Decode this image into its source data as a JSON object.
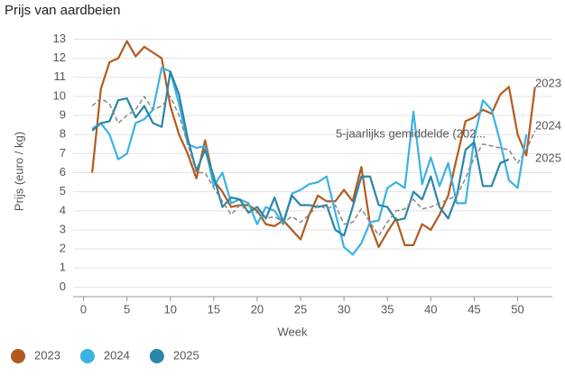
{
  "chart_data": {
    "type": "line",
    "title": "Prijs van aardbeien",
    "x_label": "Week",
    "y_label": "Prijs (euro / kg)",
    "x": [
      1,
      2,
      3,
      4,
      5,
      6,
      7,
      8,
      9,
      10,
      11,
      12,
      13,
      14,
      15,
      16,
      17,
      18,
      19,
      20,
      21,
      22,
      23,
      24,
      25,
      26,
      27,
      28,
      29,
      30,
      31,
      32,
      33,
      34,
      35,
      36,
      37,
      38,
      39,
      40,
      41,
      42,
      43,
      44,
      45,
      46,
      47,
      48,
      49,
      50,
      51,
      52
    ],
    "xlim": [
      -1.2,
      54
    ],
    "xticks": [
      0,
      5,
      10,
      15,
      20,
      25,
      30,
      35,
      40,
      45,
      50
    ],
    "ylim": [
      -0.5,
      13.4
    ],
    "yticks": [
      0,
      1,
      2,
      3,
      4,
      5,
      6,
      7,
      8,
      9,
      10,
      11,
      12,
      13
    ],
    "grid": true,
    "legend": "bottom",
    "series": [
      {
        "name": "2023",
        "color": "#b35a1f",
        "values": [
          6.0,
          10.4,
          11.8,
          12.0,
          12.9,
          12.1,
          12.6,
          12.3,
          12.0,
          9.5,
          8.0,
          7.0,
          5.7,
          7.7,
          5.6,
          5.0,
          4.2,
          4.3,
          4.3,
          4.0,
          3.3,
          3.2,
          3.5,
          3.0,
          2.5,
          3.8,
          4.8,
          4.5,
          4.5,
          5.1,
          4.5,
          6.3,
          3.3,
          2.1,
          2.9,
          3.6,
          2.2,
          2.2,
          3.3,
          3.0,
          3.8,
          4.8,
          6.8,
          8.7,
          8.9,
          9.3,
          9.1,
          10.1,
          10.5,
          8.0,
          6.9,
          10.5
        ]
      },
      {
        "name": "2024",
        "color": "#3ab2e6",
        "values": [
          8.3,
          8.6,
          8.0,
          6.7,
          7.0,
          8.6,
          8.8,
          9.3,
          11.5,
          11.3,
          9.6,
          7.5,
          7.3,
          7.4,
          5.3,
          6.0,
          4.4,
          4.6,
          4.4,
          3.3,
          4.2,
          4.0,
          3.3,
          4.9,
          5.1,
          5.4,
          5.5,
          5.8,
          3.9,
          2.1,
          1.7,
          2.3,
          3.4,
          3.5,
          5.2,
          5.5,
          5.2,
          9.2,
          5.4,
          6.8,
          5.3,
          6.5,
          4.4,
          4.4,
          7.8,
          9.8,
          9.3,
          7.6,
          5.6,
          5.2,
          8.0,
          null
        ]
      },
      {
        "name": "2025",
        "color": "#2a86a8",
        "values": [
          8.2,
          8.6,
          8.7,
          9.8,
          9.9,
          8.9,
          9.5,
          8.6,
          8.4,
          11.3,
          10.1,
          7.8,
          6.1,
          7.2,
          5.8,
          4.2,
          4.7,
          4.6,
          3.9,
          4.2,
          3.6,
          4.7,
          3.4,
          4.8,
          4.3,
          4.3,
          4.2,
          4.3,
          3.0,
          2.7,
          4.2,
          5.8,
          5.8,
          4.3,
          4.2,
          3.5,
          3.6,
          5.0,
          4.6,
          5.8,
          4.2,
          3.6,
          4.8,
          7.2,
          7.6,
          5.3,
          5.3,
          6.5,
          6.7,
          null,
          null,
          null
        ]
      },
      {
        "label": "5-jaarlijks gemiddelde (202...",
        "color": "#888888",
        "dashed": true,
        "values": [
          9.5,
          9.9,
          9.6,
          8.6,
          9.0,
          9.3,
          10.0,
          9.3,
          9.5,
          10.0,
          9.0,
          7.5,
          6.0,
          6.0,
          5.2,
          4.5,
          3.8,
          4.3,
          4.0,
          3.9,
          3.6,
          3.7,
          3.4,
          3.7,
          3.4,
          3.8,
          4.3,
          4.1,
          4.3,
          3.3,
          3.4,
          4.1,
          3.4,
          2.7,
          3.4,
          4.0,
          4.1,
          4.6,
          4.1,
          4.2,
          4.4,
          4.6,
          4.8,
          5.7,
          6.8,
          7.5,
          7.4,
          7.3,
          7.2,
          6.5,
          7.2,
          8.2
        ]
      }
    ]
  }
}
